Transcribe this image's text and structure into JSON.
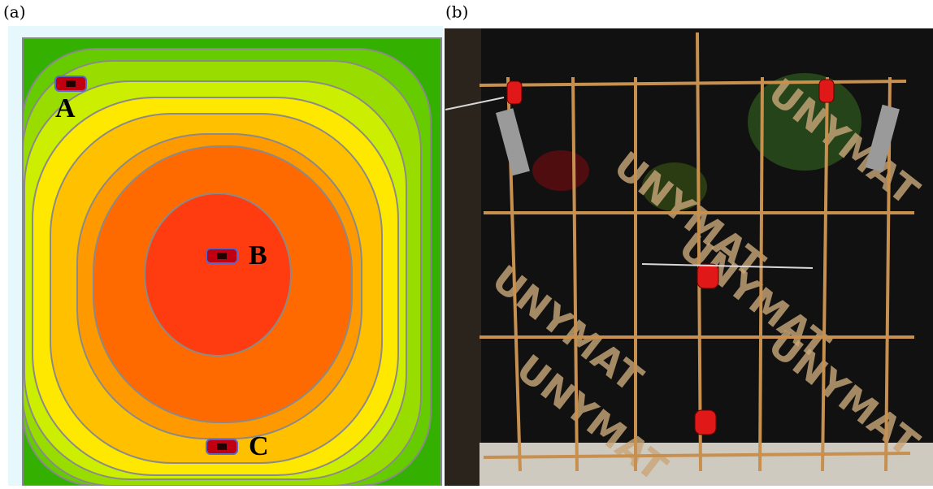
{
  "panels": [
    {
      "label": "(a)",
      "sensors": [
        "A",
        "B",
        "C"
      ]
    },
    {
      "label": "(b)",
      "watermark": "UNYMAT"
    }
  ]
}
